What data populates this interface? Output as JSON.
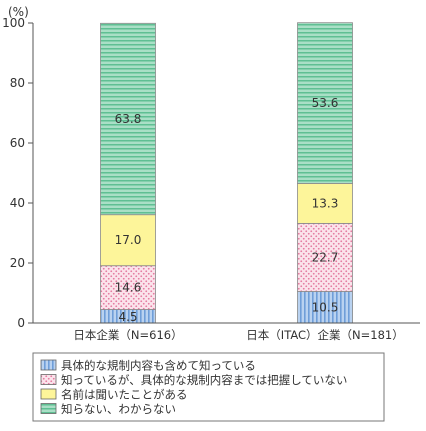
{
  "chart_data": {
    "type": "bar",
    "stacked": true,
    "unit": "(%)",
    "ylim": [
      0,
      100
    ],
    "yticks": [
      0,
      20,
      40,
      60,
      80,
      100
    ],
    "categories": [
      "日本企業（N=616）",
      "日本（ITAC）企業（N=181）"
    ],
    "series": [
      {
        "name": "具体的な規制内容も含めて知っている",
        "values": [
          4.5,
          10.5
        ],
        "color": "#9dbfe8",
        "pattern": "vlines"
      },
      {
        "name": "知っているが、具体的な規制内容までは把握していない",
        "values": [
          14.6,
          22.7
        ],
        "color": "#f6c7d6",
        "pattern": "dots"
      },
      {
        "name": "名前は聞いたことがある",
        "values": [
          17.0,
          13.3
        ],
        "color": "#fdf59a",
        "pattern": "solid"
      },
      {
        "name": "知らない、わからない",
        "values": [
          63.8,
          53.6
        ],
        "color": "#8fd3b5",
        "pattern": "hlines"
      }
    ],
    "grid": false,
    "legend_position": "bottom"
  }
}
